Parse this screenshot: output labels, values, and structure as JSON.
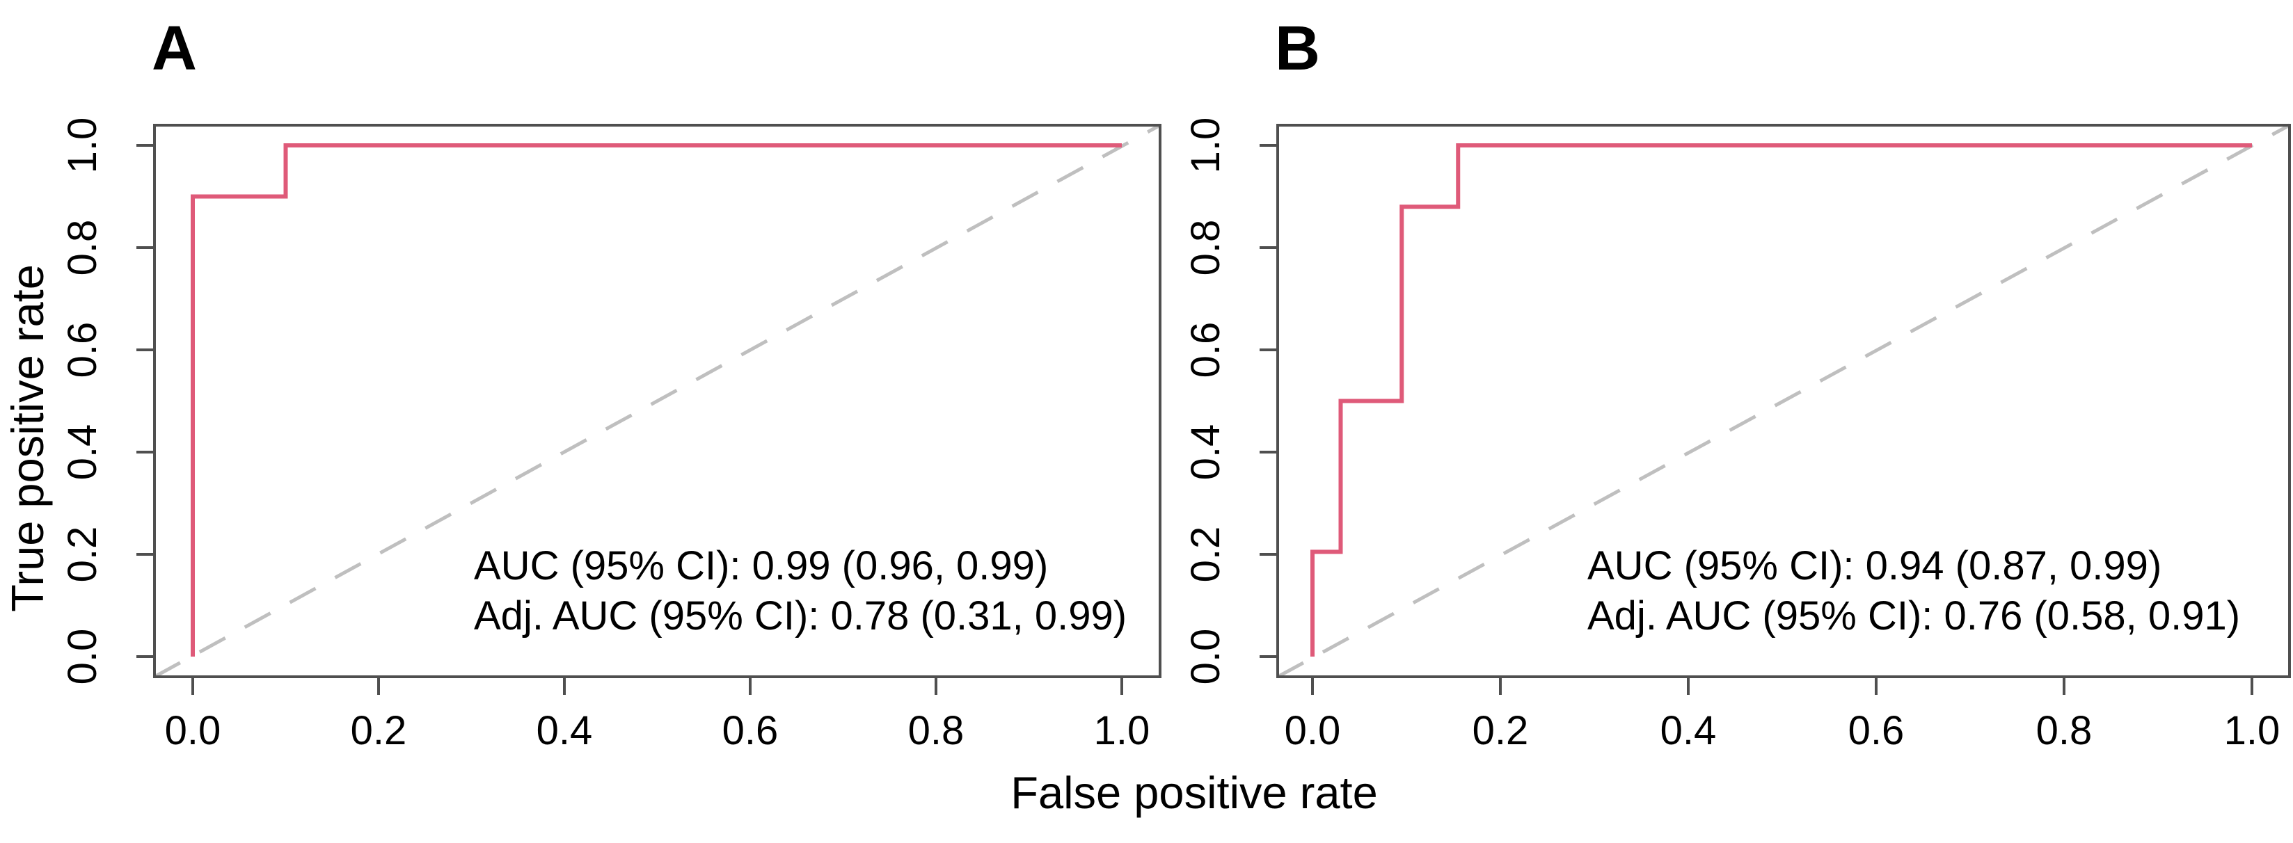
{
  "figure": {
    "x_axis_title": "False positive rate",
    "y_axis_title": "True positive rate",
    "background": "#ffffff"
  },
  "colors": {
    "roc_line": "#df5a79",
    "diagonal": "#bfbfbf",
    "axis_box": "#4f4f4f",
    "text": "#000000"
  },
  "chart_data": [
    {
      "panel": "A",
      "type": "line",
      "subtype": "roc_step",
      "title": "",
      "xlabel": "False positive rate",
      "ylabel": "True positive rate",
      "xlim": [
        0,
        1
      ],
      "ylim": [
        0,
        1
      ],
      "grid": false,
      "legend": "none",
      "xticks": [
        "0.0",
        "0.2",
        "0.4",
        "0.6",
        "0.8",
        "1.0"
      ],
      "yticks": [
        "0.0",
        "0.2",
        "0.4",
        "0.6",
        "0.8",
        "1.0"
      ],
      "series": [
        {
          "name": "ROC curve",
          "style": "solid",
          "points": [
            [
              0,
              0
            ],
            [
              0,
              0.9
            ],
            [
              0.1,
              0.9
            ],
            [
              0.1,
              1.0
            ],
            [
              1.0,
              1.0
            ]
          ]
        },
        {
          "name": "chance diagonal",
          "style": "dashed",
          "points": [
            [
              0,
              0
            ],
            [
              1,
              1
            ]
          ]
        }
      ],
      "annotations": [
        "AUC (95% CI): 0.99 (0.96, 0.99)",
        "Adj. AUC (95% CI): 0.78 (0.31, 0.99)"
      ],
      "auc": {
        "value": 0.99,
        "ci_low": 0.96,
        "ci_high": 0.99
      },
      "adj_auc": {
        "value": 0.78,
        "ci_low": 0.31,
        "ci_high": 0.99
      }
    },
    {
      "panel": "B",
      "type": "line",
      "subtype": "roc_step",
      "title": "",
      "xlabel": "False positive rate",
      "ylabel": "True positive rate",
      "xlim": [
        0,
        1
      ],
      "ylim": [
        0,
        1
      ],
      "grid": false,
      "legend": "none",
      "xticks": [
        "0.0",
        "0.2",
        "0.4",
        "0.6",
        "0.8",
        "1.0"
      ],
      "yticks": [
        "0.0",
        "0.2",
        "0.4",
        "0.6",
        "0.8",
        "1.0"
      ],
      "series": [
        {
          "name": "ROC curve",
          "style": "solid",
          "points": [
            [
              0,
              0
            ],
            [
              0,
              0.205
            ],
            [
              0.03,
              0.205
            ],
            [
              0.03,
              0.5
            ],
            [
              0.095,
              0.5
            ],
            [
              0.095,
              0.88
            ],
            [
              0.155,
              0.88
            ],
            [
              0.155,
              1.0
            ],
            [
              1.0,
              1.0
            ]
          ]
        },
        {
          "name": "chance diagonal",
          "style": "dashed",
          "points": [
            [
              0,
              0
            ],
            [
              1,
              1
            ]
          ]
        }
      ],
      "annotations": [
        "AUC (95% CI): 0.94 (0.87, 0.99)",
        "Adj. AUC (95% CI): 0.76 (0.58, 0.91)"
      ],
      "auc": {
        "value": 0.94,
        "ci_low": 0.87,
        "ci_high": 0.99
      },
      "adj_auc": {
        "value": 0.76,
        "ci_low": 0.58,
        "ci_high": 0.91
      }
    }
  ]
}
